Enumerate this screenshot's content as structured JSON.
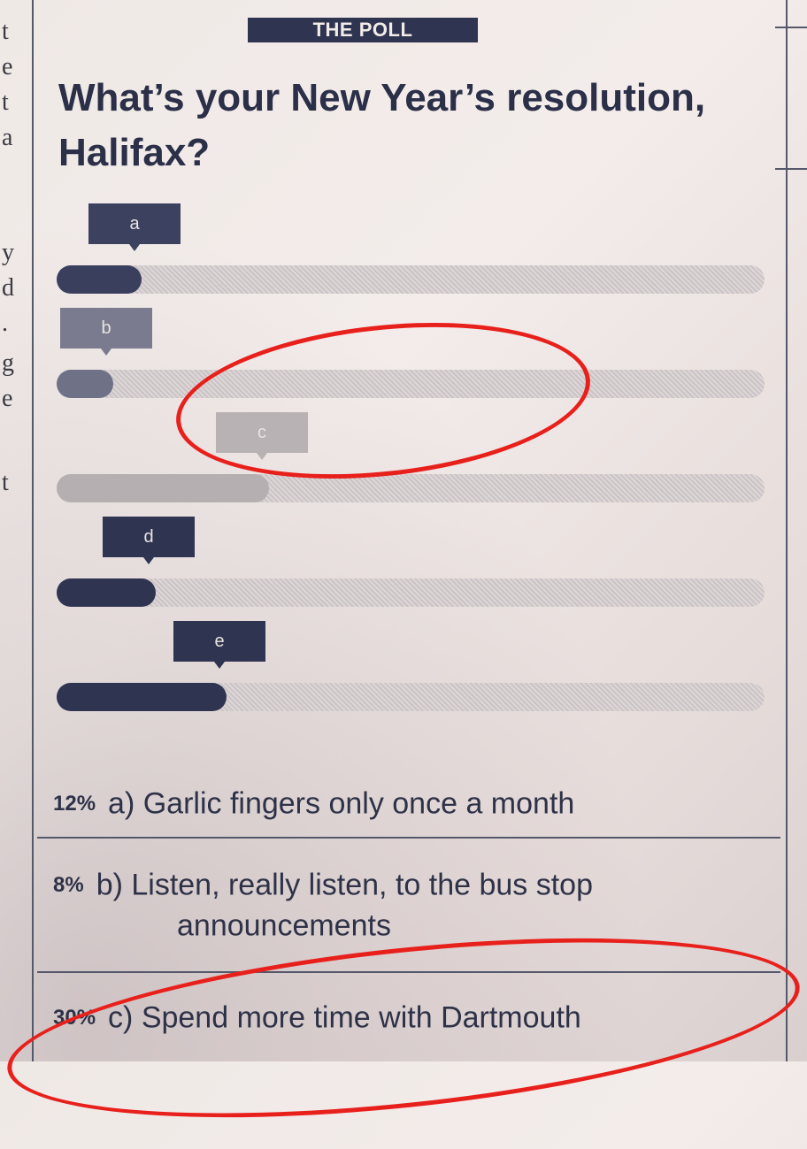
{
  "margin_letters": [
    "t",
    "e",
    "t",
    "a",
    "y",
    "d",
    ".",
    "g",
    "e",
    "t"
  ],
  "header": {
    "tag": "THE POLL",
    "title": "What’s your New Year’s resolution, Halifax?"
  },
  "chart_data": {
    "type": "bar",
    "orientation": "horizontal",
    "categories": [
      "a",
      "b",
      "c",
      "d",
      "e"
    ],
    "values": [
      12,
      8,
      30,
      14,
      24
    ],
    "xlim": [
      0,
      100
    ]
  },
  "colors": {
    "ink": "#2f3451",
    "accent": "#e8201c"
  },
  "answers": [
    {
      "pct": "12%",
      "text": "a) Garlic fingers only once a month"
    },
    {
      "pct": "8%",
      "text": "b) Listen, really listen, to the bus stop"
    },
    {
      "pct": "",
      "text": "announcements"
    },
    {
      "pct": "30%",
      "text": "c) Spend more time with Dartmouth"
    }
  ]
}
